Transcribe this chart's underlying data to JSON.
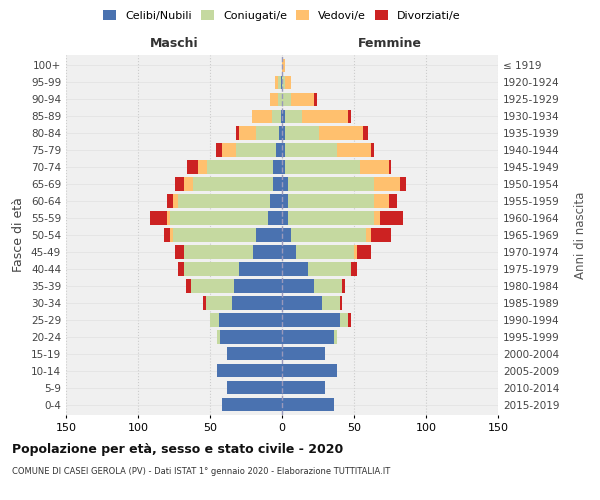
{
  "age_groups": [
    "0-4",
    "5-9",
    "10-14",
    "15-19",
    "20-24",
    "25-29",
    "30-34",
    "35-39",
    "40-44",
    "45-49",
    "50-54",
    "55-59",
    "60-64",
    "65-69",
    "70-74",
    "75-79",
    "80-84",
    "85-89",
    "90-94",
    "95-99",
    "100+"
  ],
  "birth_years": [
    "2015-2019",
    "2010-2014",
    "2005-2009",
    "2000-2004",
    "1995-1999",
    "1990-1994",
    "1985-1989",
    "1980-1984",
    "1975-1979",
    "1970-1974",
    "1965-1969",
    "1960-1964",
    "1955-1959",
    "1950-1954",
    "1945-1949",
    "1940-1944",
    "1935-1939",
    "1930-1934",
    "1925-1929",
    "1920-1924",
    "≤ 1919"
  ],
  "colors": {
    "celibi": "#4a72b0",
    "coniugati": "#c5d9a0",
    "vedovi": "#ffc06e",
    "divorziati": "#cc2222"
  },
  "maschi": {
    "celibi": [
      42,
      38,
      45,
      38,
      43,
      44,
      35,
      33,
      30,
      20,
      18,
      10,
      8,
      6,
      6,
      4,
      2,
      1,
      0,
      1,
      0
    ],
    "coniugati": [
      0,
      0,
      0,
      0,
      2,
      6,
      18,
      30,
      38,
      48,
      58,
      68,
      64,
      56,
      46,
      28,
      16,
      6,
      3,
      2,
      0
    ],
    "vedovi": [
      0,
      0,
      0,
      0,
      0,
      0,
      0,
      0,
      0,
      0,
      2,
      2,
      4,
      6,
      6,
      10,
      12,
      14,
      5,
      2,
      0
    ],
    "divorziati": [
      0,
      0,
      0,
      0,
      0,
      0,
      2,
      4,
      4,
      6,
      4,
      12,
      4,
      6,
      8,
      4,
      2,
      0,
      0,
      0,
      0
    ]
  },
  "femmine": {
    "nubili": [
      36,
      30,
      38,
      30,
      36,
      40,
      28,
      22,
      18,
      10,
      6,
      4,
      4,
      4,
      2,
      2,
      2,
      2,
      0,
      0,
      0
    ],
    "coniugate": [
      0,
      0,
      0,
      0,
      2,
      6,
      12,
      20,
      30,
      40,
      52,
      60,
      60,
      60,
      52,
      36,
      24,
      12,
      6,
      2,
      0
    ],
    "vedove": [
      0,
      0,
      0,
      0,
      0,
      0,
      0,
      0,
      0,
      2,
      4,
      4,
      10,
      18,
      20,
      24,
      30,
      32,
      16,
      4,
      2
    ],
    "divorziate": [
      0,
      0,
      0,
      0,
      0,
      2,
      2,
      2,
      4,
      10,
      14,
      16,
      6,
      4,
      2,
      2,
      4,
      2,
      2,
      0,
      0
    ]
  },
  "xlim": 150,
  "title": "Popolazione per età, sesso e stato civile - 2020",
  "subtitle": "COMUNE DI CASEI GEROLA (PV) - Dati ISTAT 1° gennaio 2020 - Elaborazione TUTTITALIA.IT",
  "ylabel_left": "Fasce di età",
  "ylabel_right": "Anni di nascita",
  "xlabel_maschi": "Maschi",
  "xlabel_femmine": "Femmine",
  "bg_color": "#f0f0f0",
  "grid_color": "#cccccc"
}
